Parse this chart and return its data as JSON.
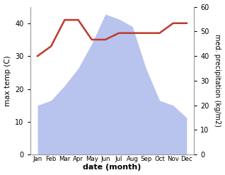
{
  "months": [
    "Jan",
    "Feb",
    "Mar",
    "Apr",
    "May",
    "Jun",
    "Jul",
    "Aug",
    "Sep",
    "Oct",
    "Nov",
    "Dec"
  ],
  "temperature": [
    30,
    33,
    41,
    41,
    35,
    35,
    37,
    37,
    37,
    37,
    40,
    40
  ],
  "precipitation": [
    20,
    22,
    28,
    35,
    45,
    57,
    55,
    52,
    35,
    22,
    20,
    15
  ],
  "temp_color": "#c0392b",
  "precip_fill_color": "#b8c4ee",
  "left_ylabel": "max temp (C)",
  "right_ylabel": "med. precipitation (kg/m2)",
  "xlabel": "date (month)",
  "ylim_left": [
    0,
    45
  ],
  "ylim_right": [
    0,
    60
  ],
  "yticks_left": [
    0,
    10,
    20,
    30,
    40
  ],
  "yticks_right": [
    0,
    10,
    20,
    30,
    40,
    50,
    60
  ],
  "bg_color": "#ffffff"
}
